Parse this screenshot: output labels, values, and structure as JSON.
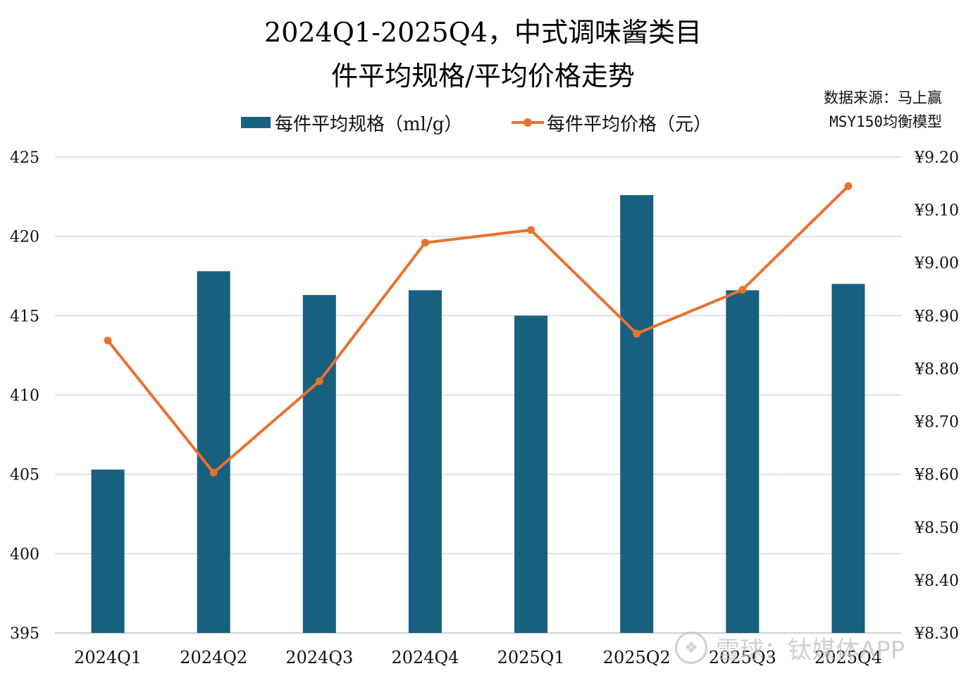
{
  "title": {
    "line1": "2024Q1-2025Q4，中式调味酱类目",
    "line2": "件平均规格/平均价格走势"
  },
  "source": {
    "line1": "数据来源：马上赢",
    "line2": "MSY150均衡模型"
  },
  "legend": {
    "bar_label": "每件平均规格（ml/g）",
    "line_label": "每件平均价格（元）"
  },
  "watermark": {
    "text": "雪球：钛媒体APP"
  },
  "colors": {
    "bar": "#17607F",
    "line": "#E8722F",
    "grid": "#D9D9D9",
    "axis": "#BFBFBF"
  },
  "chart_data": {
    "type": "bar+line",
    "categories": [
      "2024Q1",
      "2024Q2",
      "2024Q3",
      "2024Q4",
      "2025Q1",
      "2025Q2",
      "2025Q3",
      "2025Q4"
    ],
    "series": [
      {
        "name": "每件平均规格（ml/g）",
        "type": "bar",
        "axis": "left",
        "values": [
          405.3,
          417.8,
          416.3,
          416.6,
          415.0,
          422.6,
          416.6,
          417.0
        ]
      },
      {
        "name": "每件平均价格（元）",
        "type": "line",
        "axis": "right",
        "values": [
          8.853,
          8.603,
          8.776,
          9.038,
          9.062,
          8.866,
          8.949,
          9.145
        ]
      }
    ],
    "left_axis": {
      "min": 395,
      "max": 425,
      "step": 5,
      "ticks": [
        "395",
        "400",
        "405",
        "410",
        "415",
        "420",
        "425"
      ]
    },
    "right_axis": {
      "min": 8.3,
      "max": 9.2,
      "step": 0.1,
      "ticks": [
        "¥8.30",
        "¥8.40",
        "¥8.50",
        "¥8.60",
        "¥8.70",
        "¥8.80",
        "¥8.90",
        "¥9.00",
        "¥9.10",
        "¥9.20"
      ]
    },
    "grid": true,
    "legend_position": "top-center"
  }
}
